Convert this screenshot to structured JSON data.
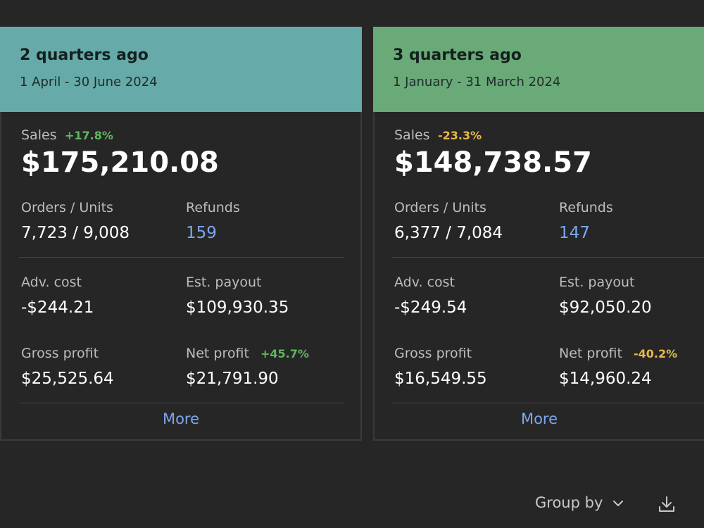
{
  "cards": [
    {
      "title": "2 quarters ago",
      "range": "1 April - 30 June 2024",
      "header_color": "#66aaa9",
      "sales_label": "Sales",
      "sales_change": "+17.8%",
      "sales_change_color": "#5fb85f",
      "sales_value": "$175,210.08",
      "orders_label": "Orders / Units",
      "orders_value": "7,723 / 9,008",
      "refunds_label": "Refunds",
      "refunds_value": "159",
      "adv_label": "Adv. cost",
      "adv_value": "-$244.21",
      "payout_label": "Est. payout",
      "payout_value": "$109,930.35",
      "gross_label": "Gross profit",
      "gross_value": "$25,525.64",
      "net_label": "Net profit",
      "net_change": "+45.7%",
      "net_change_color": "#5fb85f",
      "net_value": "$21,791.90",
      "more_label": "More"
    },
    {
      "title": "3 quarters ago",
      "range": "1 January - 31 March 2024",
      "header_color": "#6aaa79",
      "sales_label": "Sales",
      "sales_change": "-23.3%",
      "sales_change_color": "#e8b84a",
      "sales_value": "$148,738.57",
      "orders_label": "Orders / Units",
      "orders_value": "6,377 / 7,084",
      "refunds_label": "Refunds",
      "refunds_value": "147",
      "adv_label": "Adv. cost",
      "adv_value": "-$249.54",
      "payout_label": "Est. payout",
      "payout_value": "$92,050.20",
      "gross_label": "Gross profit",
      "gross_value": "$16,549.55",
      "net_label": "Net profit",
      "net_change": "-40.2%",
      "net_change_color": "#e8b84a",
      "net_value": "$14,960.24",
      "more_label": "More"
    }
  ],
  "footer": {
    "group_by_label": "Group by",
    "group_by_icon": "chevron-down-icon",
    "download_icon": "download-icon"
  }
}
